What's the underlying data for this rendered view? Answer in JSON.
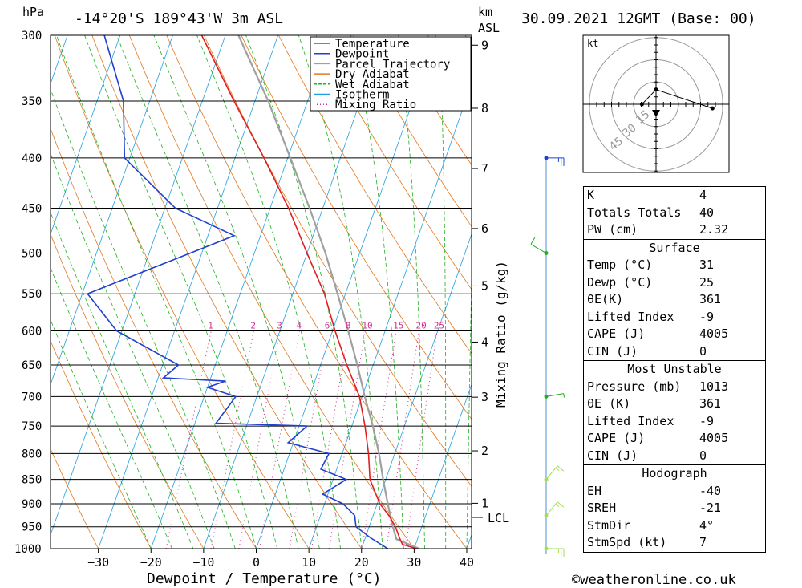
{
  "header": {
    "hpa_label": "hPa",
    "location": "-14°20'S 189°43'W 3m ASL",
    "km_label": "km",
    "asl_label": "ASL",
    "datetime": "30.09.2021 12GMT (Base: 00)"
  },
  "legend": {
    "items": [
      {
        "label": "Temperature",
        "color": "#e02020",
        "style": "solid"
      },
      {
        "label": "Dewpoint",
        "color": "#2040d0",
        "style": "solid"
      },
      {
        "label": "Parcel Trajectory",
        "color": "#a0a0a0",
        "style": "solid"
      },
      {
        "label": "Dry Adiabat",
        "color": "#e07820",
        "style": "solid"
      },
      {
        "label": "Wet Adiabat",
        "color": "#20b020",
        "style": "dashed"
      },
      {
        "label": "Isotherm",
        "color": "#20a0e0",
        "style": "solid"
      },
      {
        "label": "Mixing Ratio",
        "color": "#d03090",
        "style": "dotted"
      }
    ]
  },
  "axes": {
    "xlabel": "Dewpoint / Temperature (°C)",
    "mixing_label": "Mixing Ratio (g/kg)",
    "lcl_label": "LCL",
    "copyright": "©weatheronline.co.uk",
    "hodo_unit": "kt"
  },
  "chart_data": {
    "type": "skew-t",
    "pressure_levels": [
      300,
      350,
      400,
      450,
      500,
      550,
      600,
      650,
      700,
      750,
      800,
      850,
      900,
      950,
      1000
    ],
    "x_ticks": [
      -30,
      -20,
      -10,
      0,
      10,
      20,
      30,
      40
    ],
    "xlim": [
      -40,
      40
    ],
    "height_ticks_km": [
      1,
      2,
      3,
      4,
      5,
      6,
      7,
      8,
      9
    ],
    "height_tick_pressures": [
      899,
      795,
      701,
      616,
      540,
      472,
      410,
      356,
      307
    ],
    "mixing_ratios": [
      1,
      2,
      3,
      4,
      6,
      8,
      10,
      15,
      20,
      25
    ],
    "lcl_pressure": 978,
    "temperature": [
      {
        "p": 1000,
        "t": 30.5
      },
      {
        "p": 990,
        "t": 27.5
      },
      {
        "p": 975,
        "t": 26.5
      },
      {
        "p": 950,
        "t": 25.0
      },
      {
        "p": 925,
        "t": 23.0
      },
      {
        "p": 900,
        "t": 20.5
      },
      {
        "p": 850,
        "t": 17.0
      },
      {
        "p": 800,
        "t": 15.0
      },
      {
        "p": 750,
        "t": 12.5
      },
      {
        "p": 700,
        "t": 9.5
      },
      {
        "p": 650,
        "t": 5.0
      },
      {
        "p": 600,
        "t": 0.5
      },
      {
        "p": 550,
        "t": -4.0
      },
      {
        "p": 500,
        "t": -10.0
      },
      {
        "p": 450,
        "t": -16.5
      },
      {
        "p": 400,
        "t": -24.5
      },
      {
        "p": 350,
        "t": -34.0
      },
      {
        "p": 300,
        "t": -44.5
      }
    ],
    "dewpoint": [
      {
        "p": 1000,
        "t": 25.0
      },
      {
        "p": 975,
        "t": 21.0
      },
      {
        "p": 950,
        "t": 17.5
      },
      {
        "p": 925,
        "t": 16.5
      },
      {
        "p": 900,
        "t": 13.5
      },
      {
        "p": 880,
        "t": 9.0
      },
      {
        "p": 850,
        "t": 12.5
      },
      {
        "p": 830,
        "t": 7.0
      },
      {
        "p": 800,
        "t": 7.5
      },
      {
        "p": 780,
        "t": -1.0
      },
      {
        "p": 750,
        "t": 1.5
      },
      {
        "p": 745,
        "t": -16.0
      },
      {
        "p": 700,
        "t": -14.0
      },
      {
        "p": 685,
        "t": -20.0
      },
      {
        "p": 675,
        "t": -17.0
      },
      {
        "p": 670,
        "t": -29.0
      },
      {
        "p": 650,
        "t": -27.0
      },
      {
        "p": 600,
        "t": -41.0
      },
      {
        "p": 550,
        "t": -49.0
      },
      {
        "p": 480,
        "t": -25.0
      },
      {
        "p": 450,
        "t": -38.0
      },
      {
        "p": 400,
        "t": -51.0
      },
      {
        "p": 350,
        "t": -55.0
      },
      {
        "p": 300,
        "t": -63.0
      }
    ],
    "parcel": [
      {
        "p": 1000,
        "t": 31.0
      },
      {
        "p": 978,
        "t": 26.0
      },
      {
        "p": 950,
        "t": 24.5
      },
      {
        "p": 900,
        "t": 22.0
      },
      {
        "p": 850,
        "t": 19.5
      },
      {
        "p": 800,
        "t": 17.0
      },
      {
        "p": 750,
        "t": 14.0
      },
      {
        "p": 700,
        "t": 10.5
      },
      {
        "p": 650,
        "t": 7.0
      },
      {
        "p": 600,
        "t": 3.0
      },
      {
        "p": 550,
        "t": -1.5
      },
      {
        "p": 500,
        "t": -6.5
      },
      {
        "p": 450,
        "t": -12.5
      },
      {
        "p": 400,
        "t": -19.5
      },
      {
        "p": 350,
        "t": -27.5
      },
      {
        "p": 300,
        "t": -37.5
      }
    ],
    "wind_barbs": [
      {
        "p": 400,
        "dir": 90,
        "speed": 25,
        "color": "#2040d0"
      },
      {
        "p": 500,
        "dir": 300,
        "speed": 10,
        "color": "#20b020"
      },
      {
        "p": 700,
        "dir": 80,
        "speed": 5,
        "color": "#20b020"
      },
      {
        "p": 850,
        "dir": 40,
        "speed": 15,
        "color": "#a0e050"
      },
      {
        "p": 925,
        "dir": 40,
        "speed": 15,
        "color": "#a0e050"
      },
      {
        "p": 1000,
        "dir": 90,
        "speed": 25,
        "color": "#a0e050"
      }
    ],
    "hodograph": {
      "rings_kt": [
        15,
        30,
        45
      ],
      "points": [
        [
          -10,
          0
        ],
        [
          0,
          -18
        ],
        [
          40,
          5
        ]
      ]
    }
  },
  "indices": {
    "general": [
      {
        "key": "K",
        "value": "4"
      },
      {
        "key": "Totals Totals",
        "value": "40"
      },
      {
        "key": "PW (cm)",
        "value": "2.32"
      }
    ],
    "surface": {
      "title": "Surface",
      "rows": [
        {
          "key": "Temp (°C)",
          "value": "31"
        },
        {
          "key": "Dewp (°C)",
          "value": "25"
        },
        {
          "key": "θE(K)",
          "value": "361"
        },
        {
          "key": "Lifted Index",
          "value": "-9"
        },
        {
          "key": "CAPE (J)",
          "value": "4005"
        },
        {
          "key": "CIN (J)",
          "value": "0"
        }
      ]
    },
    "most_unstable": {
      "title": "Most Unstable",
      "rows": [
        {
          "key": "Pressure (mb)",
          "value": "1013"
        },
        {
          "key": "θE (K)",
          "value": "361"
        },
        {
          "key": "Lifted Index",
          "value": "-9"
        },
        {
          "key": "CAPE (J)",
          "value": "4005"
        },
        {
          "key": "CIN (J)",
          "value": "0"
        }
      ]
    },
    "hodograph": {
      "title": "Hodograph",
      "rows": [
        {
          "key": "EH",
          "value": "-40"
        },
        {
          "key": "SREH",
          "value": "-21"
        },
        {
          "key": "StmDir",
          "value": "4°"
        },
        {
          "key": "StmSpd (kt)",
          "value": "7"
        }
      ]
    }
  }
}
